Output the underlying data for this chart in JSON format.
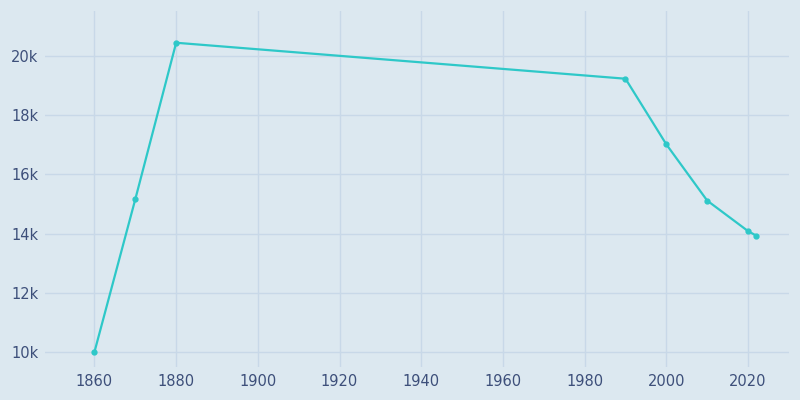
{
  "years": [
    1860,
    1870,
    1880,
    1990,
    2000,
    2010,
    2020,
    2022
  ],
  "population": [
    10005,
    15156,
    20433,
    19220,
    17006,
    15110,
    14081,
    13929
  ],
  "line_color": "#2ec8c8",
  "marker": "o",
  "marker_size": 3.5,
  "background_color": "#dce8f0",
  "grid_color": "#c8d8e8",
  "xlim": [
    1848,
    2030
  ],
  "ylim": [
    9500,
    21500
  ],
  "xticks": [
    1860,
    1880,
    1900,
    1920,
    1940,
    1960,
    1980,
    2000,
    2020
  ],
  "ytick_labels": [
    "10k",
    "12k",
    "14k",
    "16k",
    "18k",
    "20k"
  ],
  "ytick_values": [
    10000,
    12000,
    14000,
    16000,
    18000,
    20000
  ],
  "tick_color": "#3d4f7a",
  "tick_fontsize": 10.5
}
